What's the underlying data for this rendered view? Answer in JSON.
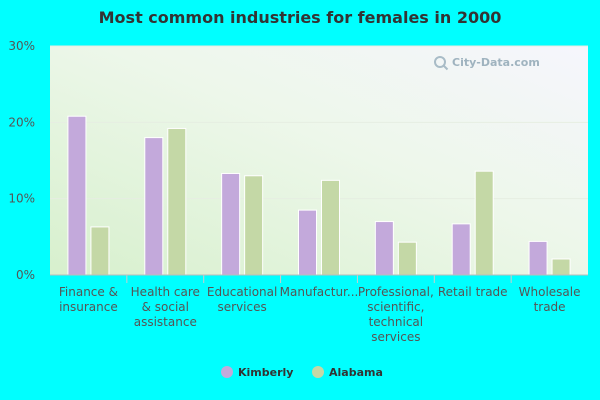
{
  "chart_data": {
    "type": "bar",
    "title": "Most common industries for females in 2000",
    "categories": [
      [
        "Finance &",
        "insurance"
      ],
      [
        "Health care",
        "& social",
        "assistance"
      ],
      [
        "Educational",
        "services"
      ],
      [
        "Manufactur..."
      ],
      [
        "Professional,",
        "scientific,",
        "technical",
        "services"
      ],
      [
        "Retail trade"
      ],
      [
        "Wholesale",
        "trade"
      ]
    ],
    "series": [
      {
        "name": "Kimberly",
        "color": "#c3a9db",
        "values": [
          20.8,
          18.0,
          13.3,
          8.5,
          7.0,
          6.7,
          4.4
        ]
      },
      {
        "name": "Alabama",
        "color": "#c4d8a6",
        "values": [
          6.3,
          19.2,
          13.0,
          12.4,
          4.3,
          13.6,
          2.1
        ]
      }
    ],
    "ylim": [
      0,
      30
    ],
    "yticks": [
      "0%",
      "10%",
      "20%",
      "30%"
    ],
    "grid": true,
    "legend_position": "bottom"
  },
  "watermark": {
    "text": "City-Data.com",
    "icon": "search-icon"
  }
}
